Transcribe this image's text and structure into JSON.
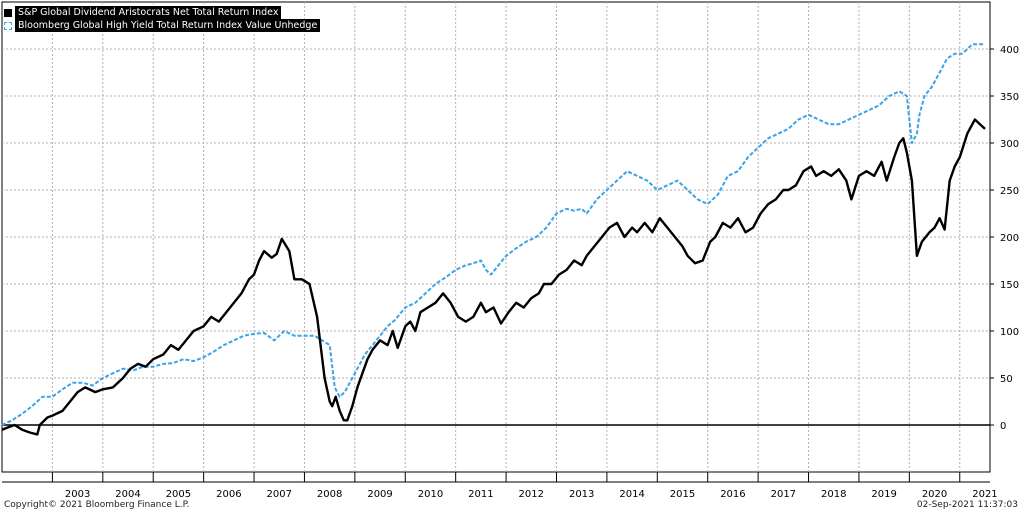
{
  "legend": {
    "series1": "S&P Global Dividend Aristocrats Net Total Return Index",
    "series2": "Bloomberg Global High Yield Total Return Index Value Unhedge"
  },
  "footer": {
    "copyright": "Copyright© 2021 Bloomberg Finance L.P.",
    "timestamp": "02-Sep-2021 11:37:03"
  },
  "colors": {
    "series1": "#000000",
    "series2": "#3ba3e8",
    "grid": "#b0b0b0"
  },
  "chart_data": {
    "type": "line",
    "ylim": [
      -50,
      450
    ],
    "yticks": [
      0,
      50,
      100,
      150,
      200,
      250,
      300,
      350,
      400
    ],
    "xlim": [
      2002.0,
      2021.6
    ],
    "xtick_labels": [
      "2003",
      "2004",
      "2005",
      "2006",
      "2007",
      "2008",
      "2009",
      "2010",
      "2011",
      "2012",
      "2013",
      "2014",
      "2015",
      "2016",
      "2017",
      "2018",
      "2019",
      "2020",
      "2021"
    ],
    "grid": true,
    "legend_position": "top-left",
    "series": [
      {
        "name": "S&P Global Dividend Aristocrats Net Total Return Index",
        "style": "solid",
        "x": [
          2002.0,
          2002.1,
          2002.25,
          2002.4,
          2002.55,
          2002.7,
          2002.75,
          2002.9,
          2003.0,
          2003.2,
          2003.35,
          2003.5,
          2003.65,
          2003.85,
          2004.0,
          2004.2,
          2004.4,
          2004.55,
          2004.7,
          2004.85,
          2005.0,
          2005.2,
          2005.35,
          2005.5,
          2005.65,
          2005.8,
          2006.0,
          2006.15,
          2006.3,
          2006.45,
          2006.6,
          2006.75,
          2006.9,
          2007.0,
          2007.1,
          2007.2,
          2007.35,
          2007.45,
          2007.55,
          2007.7,
          2007.8,
          2007.95,
          2008.1,
          2008.25,
          2008.4,
          2008.5,
          2008.55,
          2008.62,
          2008.7,
          2008.78,
          2008.85,
          2008.95,
          2009.05,
          2009.15,
          2009.25,
          2009.35,
          2009.5,
          2009.65,
          2009.75,
          2009.85,
          2010.0,
          2010.1,
          2010.2,
          2010.3,
          2010.45,
          2010.6,
          2010.75,
          2010.9,
          2011.05,
          2011.2,
          2011.35,
          2011.5,
          2011.6,
          2011.75,
          2011.9,
          2012.05,
          2012.2,
          2012.35,
          2012.5,
          2012.65,
          2012.75,
          2012.9,
          2013.05,
          2013.2,
          2013.35,
          2013.5,
          2013.6,
          2013.75,
          2013.9,
          2014.05,
          2014.2,
          2014.35,
          2014.5,
          2014.6,
          2014.75,
          2014.9,
          2015.05,
          2015.2,
          2015.35,
          2015.5,
          2015.6,
          2015.75,
          2015.9,
          2016.05,
          2016.15,
          2016.3,
          2016.45,
          2016.6,
          2016.75,
          2016.9,
          2017.05,
          2017.2,
          2017.35,
          2017.5,
          2017.6,
          2017.75,
          2017.9,
          2018.05,
          2018.15,
          2018.3,
          2018.45,
          2018.6,
          2018.75,
          2018.85,
          2019.0,
          2019.15,
          2019.3,
          2019.45,
          2019.55,
          2019.7,
          2019.8,
          2019.88,
          2019.95,
          2020.05,
          2020.15,
          2020.25,
          2020.4,
          2020.5,
          2020.6,
          2020.7,
          2020.8,
          2020.9,
          2021.0,
          2021.15,
          2021.3,
          2021.4,
          2021.5
        ],
        "y": [
          -5,
          -3,
          0,
          -5,
          -8,
          -10,
          0,
          8,
          10,
          15,
          25,
          35,
          40,
          35,
          38,
          40,
          50,
          60,
          65,
          62,
          70,
          75,
          85,
          80,
          90,
          100,
          105,
          115,
          110,
          120,
          130,
          140,
          155,
          160,
          175,
          185,
          178,
          182,
          198,
          185,
          155,
          155,
          150,
          115,
          50,
          25,
          20,
          30,
          15,
          5,
          5,
          20,
          40,
          55,
          70,
          80,
          90,
          85,
          100,
          82,
          105,
          110,
          100,
          120,
          125,
          130,
          140,
          130,
          115,
          110,
          115,
          130,
          120,
          125,
          108,
          120,
          130,
          125,
          135,
          140,
          150,
          150,
          160,
          165,
          175,
          170,
          180,
          190,
          200,
          210,
          215,
          200,
          210,
          205,
          215,
          205,
          220,
          210,
          200,
          190,
          180,
          172,
          175,
          195,
          200,
          215,
          210,
          220,
          205,
          210,
          225,
          235,
          240,
          250,
          250,
          255,
          270,
          275,
          265,
          270,
          265,
          272,
          260,
          240,
          265,
          270,
          265,
          280,
          260,
          285,
          300,
          305,
          290,
          260,
          180,
          195,
          205,
          210,
          220,
          208,
          260,
          275,
          285,
          310,
          325,
          320,
          315
        ]
      },
      {
        "name": "Bloomberg Global High Yield Total Return Index Value Unhedge",
        "style": "dashed",
        "x": [
          2002.0,
          2002.2,
          2002.4,
          2002.6,
          2002.8,
          2003.0,
          2003.2,
          2003.4,
          2003.6,
          2003.8,
          2004.0,
          2004.2,
          2004.4,
          2004.6,
          2004.8,
          2005.0,
          2005.2,
          2005.4,
          2005.6,
          2005.8,
          2006.0,
          2006.2,
          2006.4,
          2006.6,
          2006.8,
          2007.0,
          2007.2,
          2007.4,
          2007.6,
          2007.8,
          2008.0,
          2008.2,
          2008.35,
          2008.5,
          2008.6,
          2008.7,
          2008.8,
          2008.9,
          2009.0,
          2009.1,
          2009.2,
          2009.35,
          2009.5,
          2009.65,
          2009.8,
          2010.0,
          2010.2,
          2010.4,
          2010.6,
          2010.8,
          2011.0,
          2011.2,
          2011.35,
          2011.5,
          2011.6,
          2011.7,
          2011.85,
          2012.0,
          2012.2,
          2012.4,
          2012.6,
          2012.8,
          2013.0,
          2013.2,
          2013.35,
          2013.5,
          2013.6,
          2013.8,
          2014.0,
          2014.2,
          2014.4,
          2014.6,
          2014.8,
          2015.0,
          2015.2,
          2015.4,
          2015.6,
          2015.8,
          2016.0,
          2016.2,
          2016.4,
          2016.6,
          2016.8,
          2017.0,
          2017.2,
          2017.4,
          2017.6,
          2017.8,
          2018.0,
          2018.2,
          2018.4,
          2018.6,
          2018.8,
          2019.0,
          2019.2,
          2019.4,
          2019.6,
          2019.8,
          2019.95,
          2020.05,
          2020.15,
          2020.2,
          2020.3,
          2020.45,
          2020.6,
          2020.75,
          2020.9,
          2021.05,
          2021.15,
          2021.25,
          2021.4,
          2021.5
        ],
        "y": [
          0,
          5,
          12,
          20,
          30,
          30,
          38,
          45,
          45,
          42,
          50,
          55,
          60,
          58,
          62,
          62,
          65,
          66,
          70,
          68,
          72,
          78,
          85,
          90,
          95,
          97,
          98,
          90,
          100,
          95,
          95,
          95,
          90,
          85,
          40,
          30,
          35,
          45,
          55,
          65,
          75,
          85,
          95,
          105,
          112,
          125,
          130,
          140,
          150,
          157,
          165,
          170,
          172,
          175,
          165,
          160,
          170,
          180,
          188,
          195,
          200,
          210,
          225,
          230,
          228,
          230,
          225,
          240,
          250,
          260,
          270,
          265,
          260,
          250,
          255,
          260,
          250,
          240,
          235,
          245,
          265,
          270,
          285,
          295,
          305,
          310,
          315,
          325,
          330,
          325,
          320,
          320,
          325,
          330,
          335,
          340,
          350,
          355,
          350,
          300,
          310,
          330,
          350,
          360,
          375,
          390,
          395,
          395,
          400,
          405,
          405,
          405
        ]
      }
    ]
  }
}
